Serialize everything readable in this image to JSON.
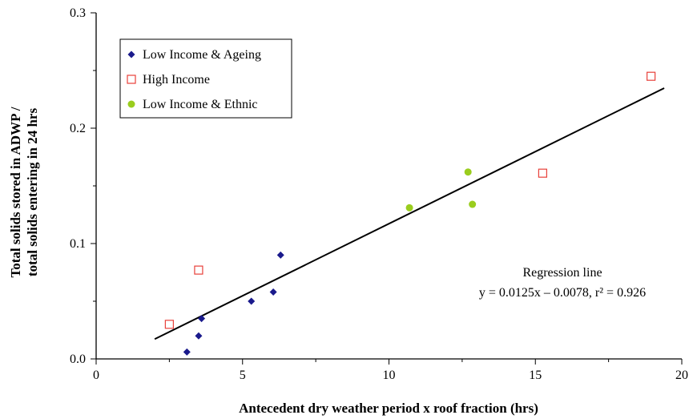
{
  "chart_data": {
    "type": "scatter",
    "title": "",
    "xlabel": "Antecedent dry weather period x roof fraction (hrs)",
    "ylabel_line1": "Total solids stored in ADWP /",
    "ylabel_line2": "total solids entering in 24 hrs",
    "xlim": [
      0,
      20
    ],
    "ylim": [
      0,
      0.3
    ],
    "x_ticks": [
      0,
      5,
      10,
      15,
      20
    ],
    "x_tick_labels": [
      "0",
      "5",
      "10",
      "15",
      "20"
    ],
    "y_ticks": [
      0,
      0.1,
      0.2,
      0.3
    ],
    "y_tick_labels": [
      "0.0",
      "0.1",
      "0.2",
      "0.3"
    ],
    "grid": false,
    "legend_position": "top-left",
    "series": [
      {
        "name": "Low Income & Ageing",
        "marker": "diamond",
        "color": "#1a1a8c",
        "points": [
          [
            3.1,
            0.006
          ],
          [
            3.5,
            0.02
          ],
          [
            3.6,
            0.035
          ],
          [
            5.3,
            0.05
          ],
          [
            6.05,
            0.058
          ],
          [
            6.3,
            0.09
          ]
        ]
      },
      {
        "name": "High Income",
        "marker": "open-square",
        "color": "#e8403a",
        "points": [
          [
            2.5,
            0.03
          ],
          [
            3.5,
            0.077
          ],
          [
            15.25,
            0.161
          ],
          [
            18.95,
            0.245
          ]
        ]
      },
      {
        "name": "Low Income & Ethnic",
        "marker": "circle",
        "color": "#9acd1e",
        "points": [
          [
            10.7,
            0.131
          ],
          [
            12.7,
            0.162
          ],
          [
            12.85,
            0.134
          ]
        ]
      }
    ],
    "regression": {
      "x_range": [
        2.0,
        19.4
      ],
      "slope": 0.0125,
      "intercept": -0.0078,
      "color": "#000000",
      "label_line1": "Regression line",
      "label_line2": "y = 0.0125x – 0.0078, r² = 0.926"
    }
  }
}
